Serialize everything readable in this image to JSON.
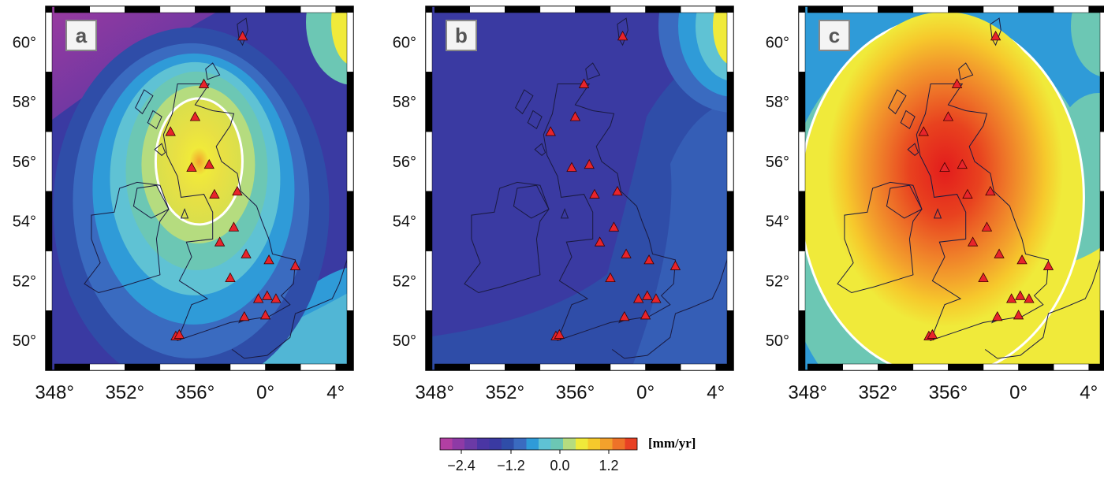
{
  "panels": [
    {
      "id": "a",
      "label": "a",
      "variant": "a"
    },
    {
      "id": "b",
      "label": "b",
      "variant": "b"
    },
    {
      "id": "c",
      "label": "c",
      "variant": "c"
    }
  ],
  "axes": {
    "lat_ticks": [
      "50°",
      "52°",
      "54°",
      "56°",
      "58°",
      "60°"
    ],
    "lon_ticks": [
      "348°",
      "352°",
      "356°",
      "0°",
      "4°"
    ]
  },
  "colorbar": {
    "unit": "[mm/yr]",
    "tick_labels": [
      "−2.4",
      "−1.2",
      "0.0",
      "1.2"
    ],
    "colors": [
      "#b23fa3",
      "#8e3aa6",
      "#6b3aa6",
      "#4a36a4",
      "#3a3aa2",
      "#2f4da8",
      "#3a6bc0",
      "#2f9bd8",
      "#5fc2d4",
      "#6cc7b4",
      "#b5dc7f",
      "#f0ea3a",
      "#f6c92c",
      "#f3a12c",
      "#ee7228",
      "#e84124"
    ]
  },
  "stations": [
    {
      "lon": -1.3,
      "lat": 60.2
    },
    {
      "lon": -3.5,
      "lat": 58.6
    },
    {
      "lon": -4.0,
      "lat": 57.5
    },
    {
      "lon": -5.4,
      "lat": 57.0
    },
    {
      "lon": -4.2,
      "lat": 55.8
    },
    {
      "lon": -3.2,
      "lat": 55.9
    },
    {
      "lon": -2.9,
      "lat": 54.9
    },
    {
      "lon": -1.6,
      "lat": 55.0
    },
    {
      "lon": -1.8,
      "lat": 53.8
    },
    {
      "lon": -2.6,
      "lat": 53.3
    },
    {
      "lon": -1.1,
      "lat": 52.9
    },
    {
      "lon": 0.2,
      "lat": 52.7
    },
    {
      "lon": 1.7,
      "lat": 52.5
    },
    {
      "lon": -2.0,
      "lat": 52.1
    },
    {
      "lon": -0.4,
      "lat": 51.4
    },
    {
      "lon": 0.1,
      "lat": 51.5
    },
    {
      "lon": 0.6,
      "lat": 51.4
    },
    {
      "lon": -1.2,
      "lat": 50.8
    },
    {
      "lon": 0.0,
      "lat": 50.85
    },
    {
      "lon": -5.1,
      "lat": 50.15
    },
    {
      "lon": -4.9,
      "lat": 50.2
    }
  ]
}
